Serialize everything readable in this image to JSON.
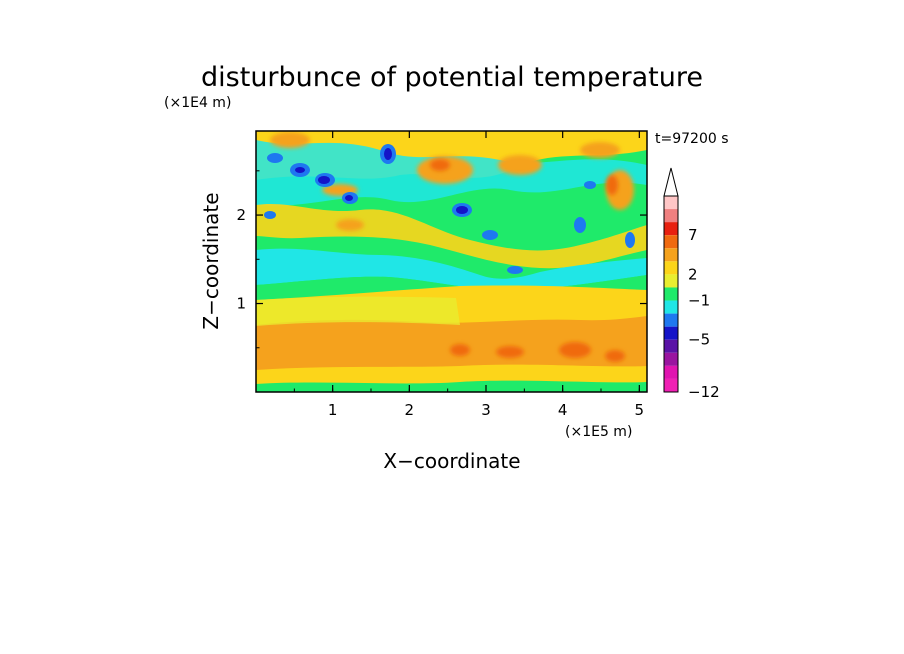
{
  "chart_data": {
    "type": "heatmap",
    "title": "disturbunce of potential temperature",
    "xlabel": "X−coordinate",
    "ylabel": "Z−coordinate",
    "x_unit": "(×1E5 m)",
    "y_unit": "(×1E4 m)",
    "time_label": "t=97200 s",
    "xlim": [
      0,
      5.1
    ],
    "ylim": [
      0,
      2.95
    ],
    "x_ticks": [
      1,
      2,
      3,
      4,
      5
    ],
    "y_ticks": [
      1,
      2
    ],
    "colorbar": {
      "labels": [
        "7",
        "2",
        "−1",
        "−5",
        "−12"
      ],
      "colors": [
        "#ffc6c6",
        "#f08080",
        "#e82010",
        "#f06a10",
        "#f5a21d",
        "#fcd51a",
        "#e8ee30",
        "#1fea6a",
        "#20e6e6",
        "#1e78f0",
        "#1414c8",
        "#5a12a6",
        "#9a14a0",
        "#e014b0",
        "#f020b4"
      ],
      "extend_max_color": "#ffffff"
    },
    "field_bands": [
      {
        "z_range": [
          0.0,
          0.18
        ],
        "dominant": "#fcd51a"
      },
      {
        "z_range": [
          0.18,
          0.7
        ],
        "dominant": "#f5a21d"
      },
      {
        "z_range": [
          0.7,
          1.05
        ],
        "dominant": "#fcd51a"
      },
      {
        "z_range": [
          1.05,
          1.4
        ],
        "dominant": "#1fea6a"
      },
      {
        "z_range": [
          1.4,
          2.95
        ],
        "dominant": "#1fea6a"
      }
    ]
  }
}
